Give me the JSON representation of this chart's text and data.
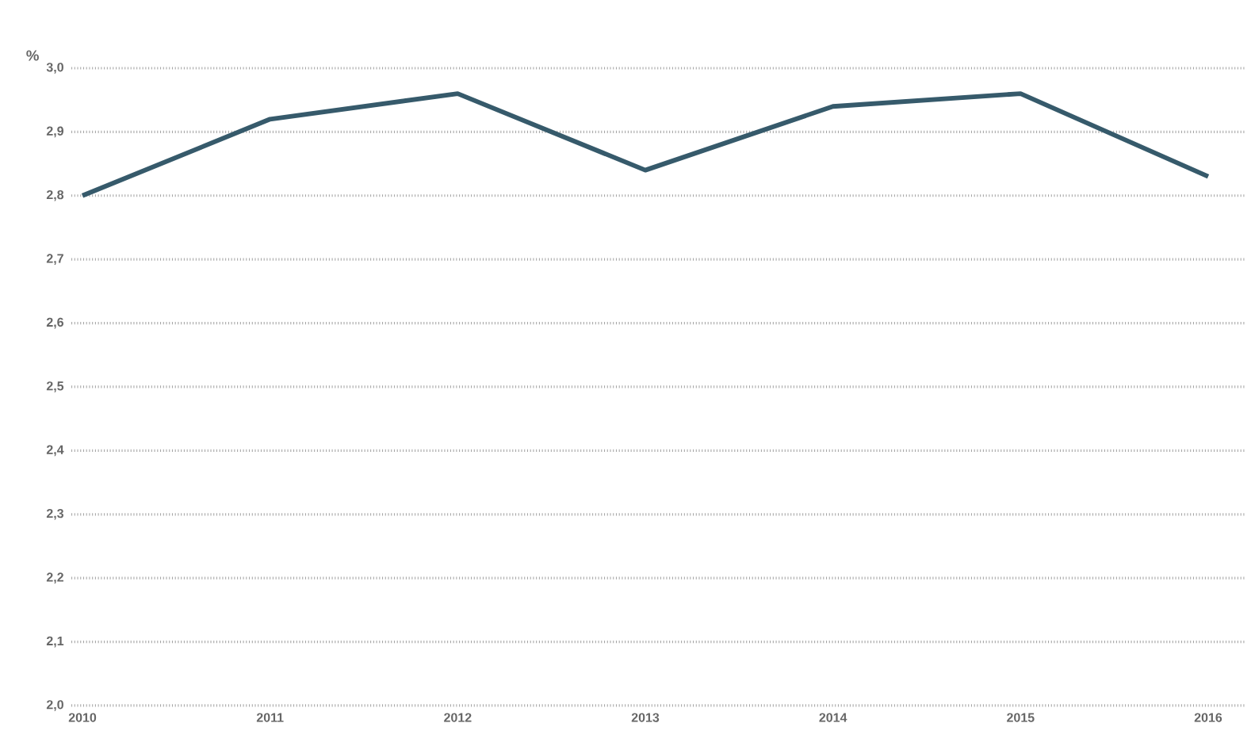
{
  "chart_data": {
    "type": "line",
    "ylabel": "%",
    "categories": [
      "2010",
      "2011",
      "2012",
      "2013",
      "2014",
      "2015",
      "2016"
    ],
    "series": [
      {
        "color": "#365a6b",
        "values": [
          2.8,
          2.92,
          2.96,
          2.84,
          2.94,
          2.96,
          2.83
        ]
      }
    ],
    "ylim": [
      2.0,
      3.0
    ],
    "yticks": [
      {
        "value": 2.0,
        "label": "2,0"
      },
      {
        "value": 2.1,
        "label": "2,1"
      },
      {
        "value": 2.2,
        "label": "2,2"
      },
      {
        "value": 2.3,
        "label": "2,3"
      },
      {
        "value": 2.4,
        "label": "2,4"
      },
      {
        "value": 2.5,
        "label": "2,5"
      },
      {
        "value": 2.6,
        "label": "2,6"
      },
      {
        "value": 2.7,
        "label": "2,7"
      },
      {
        "value": 2.8,
        "label": "2,8"
      },
      {
        "value": 2.9,
        "label": "2,9"
      },
      {
        "value": 3.0,
        "label": "3,0"
      }
    ],
    "grid": "y",
    "marker": "none",
    "line_style": "solid"
  }
}
